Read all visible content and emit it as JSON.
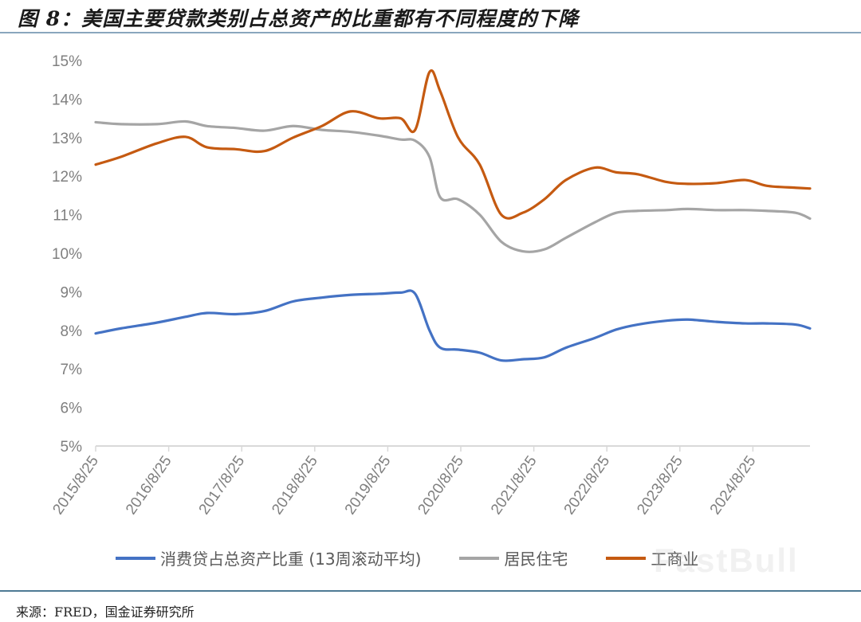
{
  "header": {
    "title": "图 8：美国主要贷款类别占总资产的比重都有不同程度的下降"
  },
  "footer": {
    "source": "来源：FRED，国金证券研究所"
  },
  "watermark": "FastBull",
  "colors": {
    "consumer": "#4472c4",
    "residential": "#a5a5a5",
    "commercial": "#c55a11",
    "axis": "#d9d9d9",
    "tick_text": "#7f7f7f",
    "title_rule": "#8aa6bd",
    "footer_rule": "#4d7a94"
  },
  "legend": [
    {
      "name": "消费贷占总资产比重 (13周滚动平均)",
      "color": "#4472c4"
    },
    {
      "name": "居民住宅",
      "color": "#a5a5a5"
    },
    {
      "name": "工商业",
      "color": "#c55a11"
    }
  ],
  "chart_data": {
    "type": "line",
    "title": "美国主要贷款类别占总资产的比重都有不同程度的下降",
    "xlabel": "",
    "ylabel": "",
    "ylim": [
      5,
      15
    ],
    "yticks": [
      "5%",
      "6%",
      "7%",
      "8%",
      "9%",
      "10%",
      "11%",
      "12%",
      "13%",
      "14%",
      "15%"
    ],
    "xticks": [
      "2015/8/25",
      "2016/8/25",
      "2017/8/25",
      "2018/8/25",
      "2019/8/25",
      "2020/8/25",
      "2021/8/25",
      "2022/8/25",
      "2023/8/25",
      "2024/8/25"
    ],
    "grid": false,
    "legend_position": "bottom",
    "x": [
      2015.65,
      2016.0,
      2016.5,
      2016.9,
      2017.2,
      2017.6,
      2018.0,
      2018.4,
      2018.8,
      2019.2,
      2019.6,
      2019.9,
      2020.1,
      2020.3,
      2020.45,
      2020.7,
      2021.0,
      2021.3,
      2021.6,
      2021.9,
      2022.2,
      2022.6,
      2022.9,
      2023.2,
      2023.6,
      2023.9,
      2024.3,
      2024.7,
      2025.0,
      2025.4,
      2025.6
    ],
    "series": [
      {
        "name": "消费贷占总资产比重 (13周滚动平均)",
        "values": [
          7.92,
          8.05,
          8.2,
          8.35,
          8.45,
          8.42,
          8.5,
          8.75,
          8.85,
          8.92,
          8.95,
          8.98,
          8.95,
          8.0,
          7.55,
          7.5,
          7.42,
          7.22,
          7.25,
          7.3,
          7.55,
          7.8,
          8.02,
          8.15,
          8.25,
          8.28,
          8.22,
          8.18,
          8.18,
          8.15,
          8.05
        ]
      },
      {
        "name": "居民住宅",
        "values": [
          13.4,
          13.35,
          13.35,
          13.42,
          13.3,
          13.25,
          13.18,
          13.3,
          13.2,
          13.15,
          13.05,
          12.95,
          12.92,
          12.5,
          11.45,
          11.4,
          11.0,
          10.3,
          10.05,
          10.1,
          10.4,
          10.8,
          11.05,
          11.1,
          11.12,
          11.15,
          11.12,
          11.12,
          11.1,
          11.05,
          10.9
        ]
      },
      {
        "name": "工商业",
        "values": [
          12.3,
          12.5,
          12.85,
          13.02,
          12.75,
          12.7,
          12.65,
          13.0,
          13.3,
          13.68,
          13.5,
          13.5,
          13.2,
          14.7,
          14.2,
          13.0,
          12.3,
          11.0,
          11.05,
          11.4,
          11.9,
          12.22,
          12.1,
          12.05,
          11.85,
          11.8,
          11.82,
          11.9,
          11.75,
          11.7,
          11.68
        ]
      }
    ]
  }
}
